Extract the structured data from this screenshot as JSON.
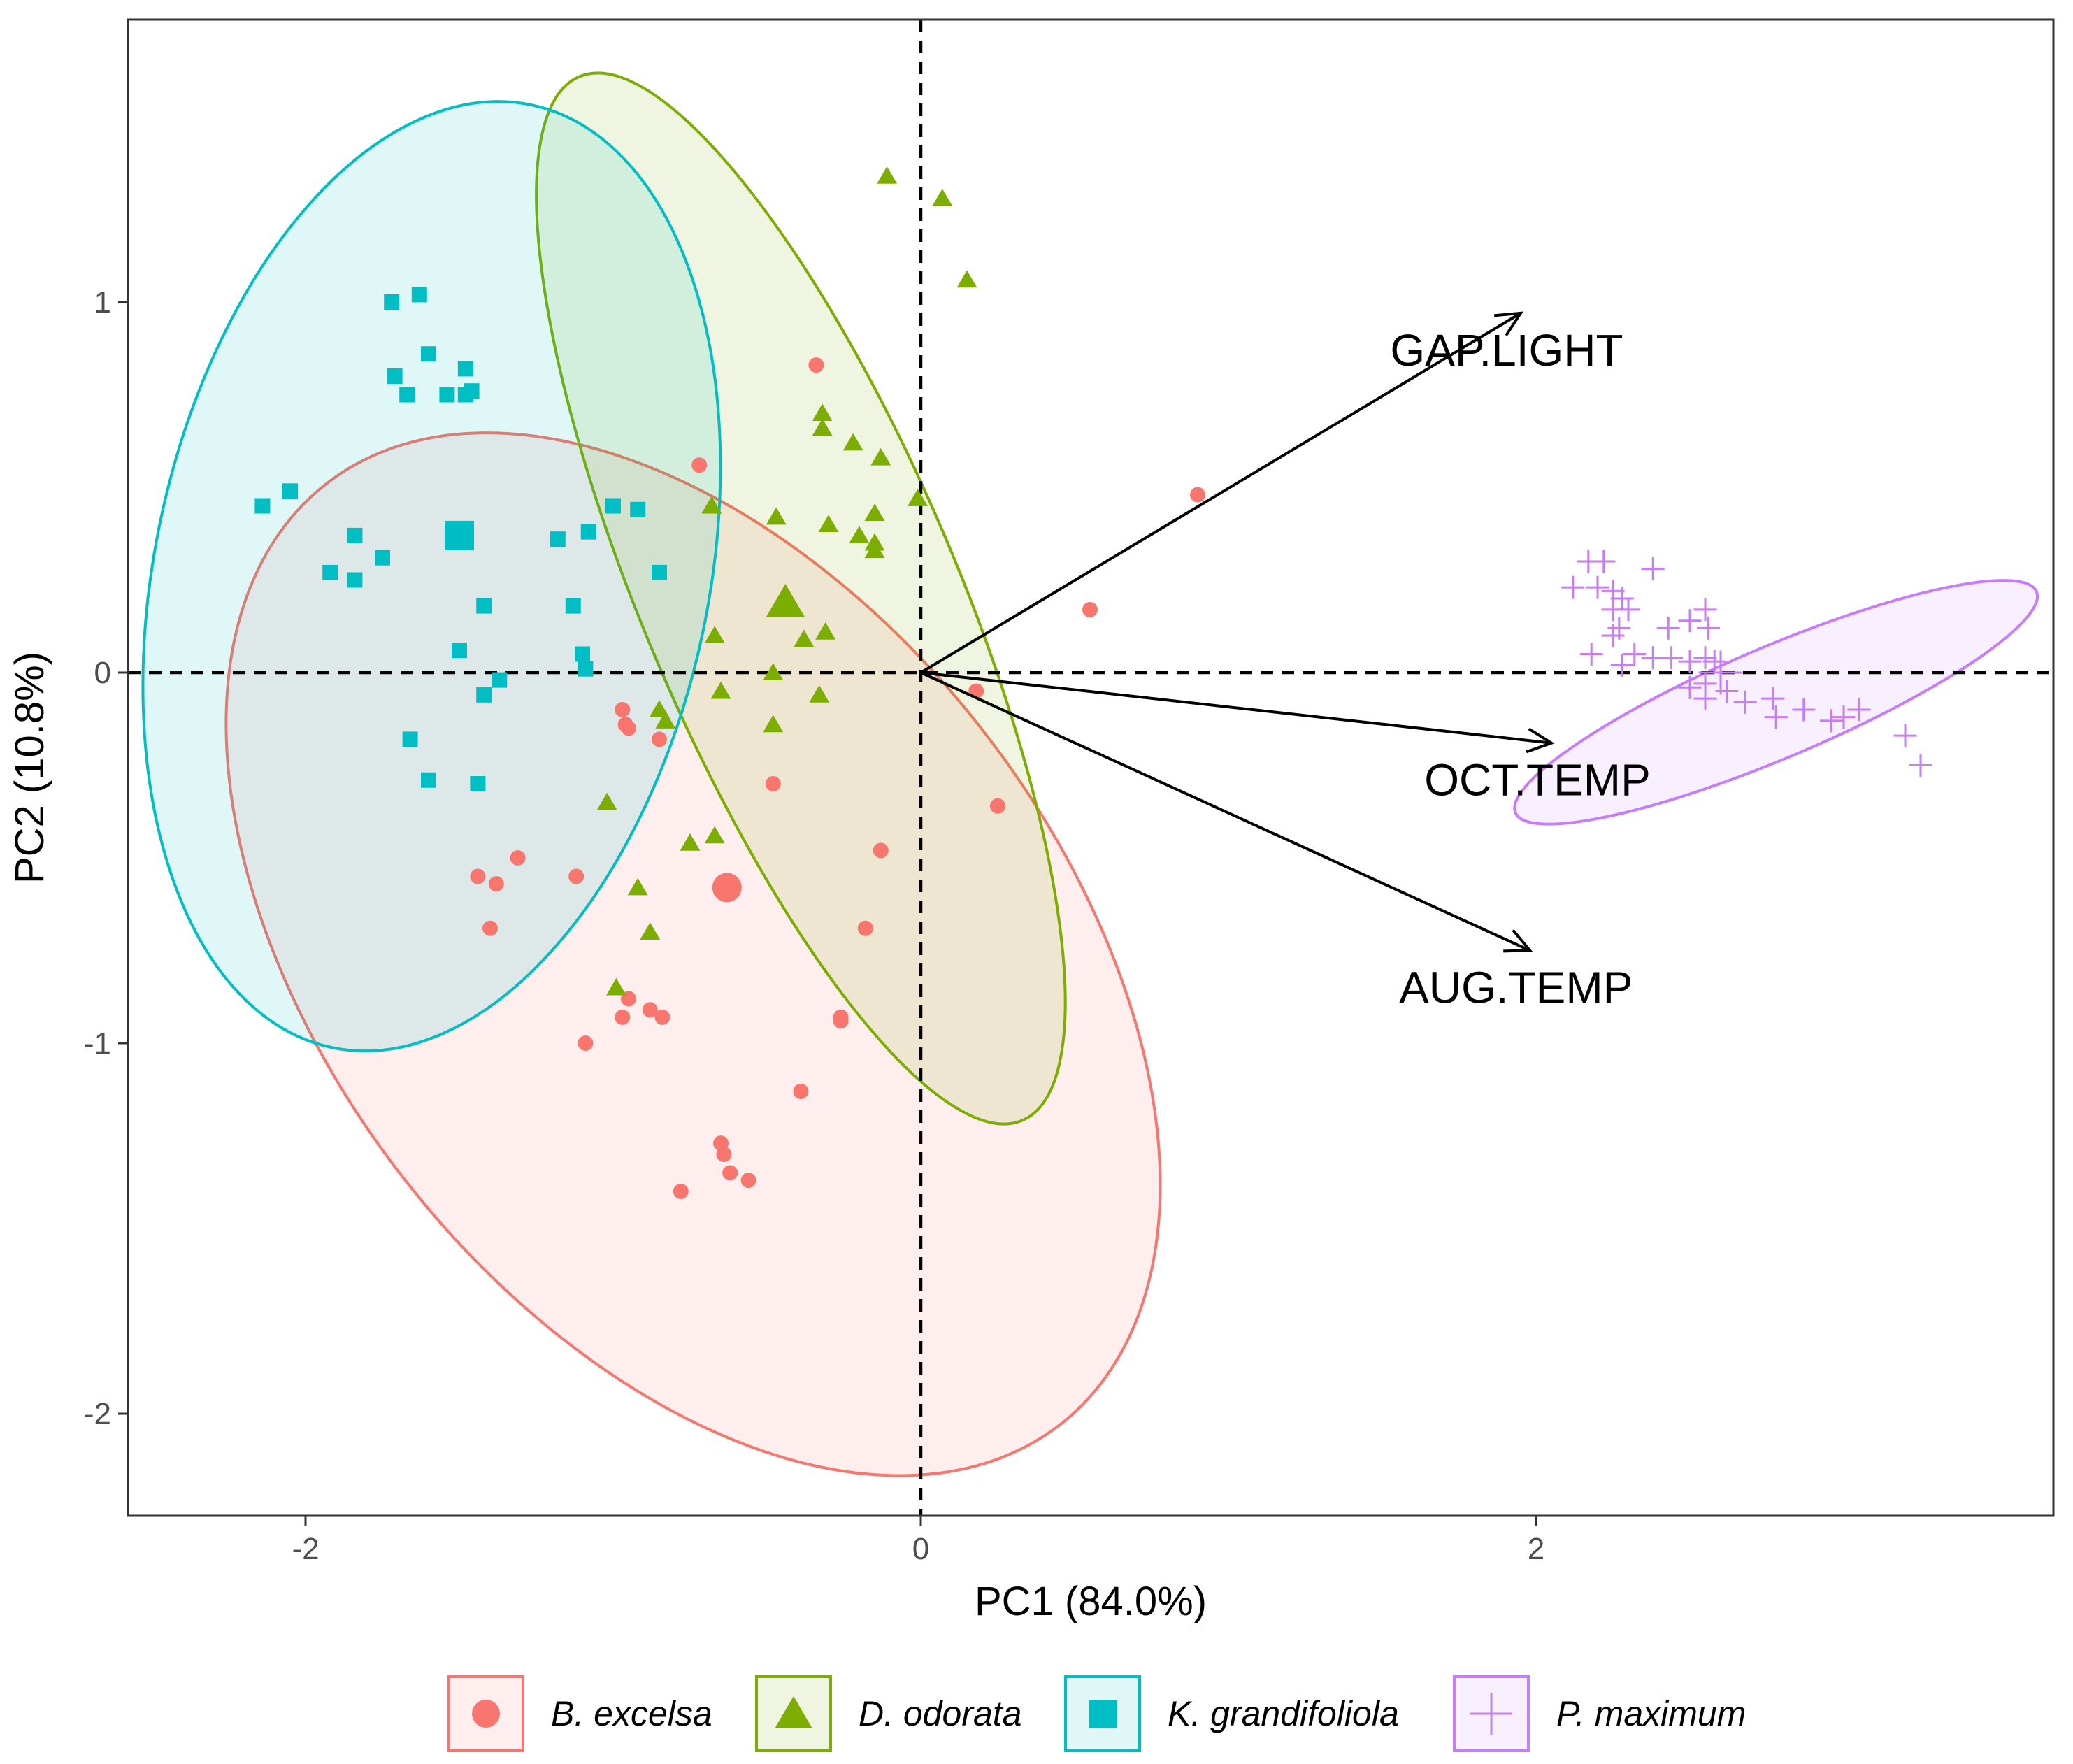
{
  "chart_data": {
    "type": "scatter",
    "subtype": "pca_biplot",
    "title": "",
    "xlabel": "PC1 (84.0%)",
    "ylabel": "PC2 (10.8%)",
    "xlim": [
      -2.5,
      3.6
    ],
    "ylim": [
      -2.3,
      1.75
    ],
    "xticks": [
      -2,
      0,
      2
    ],
    "xtick_labels": [
      "-2",
      "0",
      "2"
    ],
    "yticks": [
      -2,
      -1,
      0,
      1
    ],
    "ytick_labels": [
      "-2",
      "-1",
      "0",
      "1"
    ],
    "grid": false,
    "reference_lines": {
      "x": 0,
      "y": 0,
      "style": "dashed"
    },
    "legend_position": "bottom",
    "arrows": [
      {
        "label": "GAP.LIGHT",
        "x": 1.95,
        "y": 0.97
      },
      {
        "label": "OCT.TEMP",
        "x": 2.05,
        "y": -0.19
      },
      {
        "label": "AUG.TEMP",
        "x": 1.98,
        "y": -0.75
      }
    ],
    "series": [
      {
        "name": "B. excelsa",
        "color": "#F8766D",
        "marker": "circle",
        "ellipse": {
          "cx": -0.74,
          "cy": -0.76,
          "rx": 1.19,
          "ry": 1.61,
          "angle": 38
        },
        "centroid": [
          -0.63,
          -0.58
        ],
        "points": [
          [
            -0.34,
            0.83
          ],
          [
            -0.72,
            0.56
          ],
          [
            0.9,
            0.48
          ],
          [
            0.55,
            0.17
          ],
          [
            0.18,
            -0.05
          ],
          [
            0.25,
            -0.36
          ],
          [
            -0.97,
            -0.1
          ],
          [
            -0.95,
            -0.15
          ],
          [
            -0.96,
            -0.14
          ],
          [
            -0.85,
            -0.18
          ],
          [
            -0.48,
            -0.3
          ],
          [
            -1.44,
            -0.55
          ],
          [
            -1.38,
            -0.57
          ],
          [
            -1.31,
            -0.5
          ],
          [
            -1.12,
            -0.55
          ],
          [
            -1.4,
            -0.69
          ],
          [
            -0.13,
            -0.48
          ],
          [
            -0.18,
            -0.69
          ],
          [
            -0.95,
            -0.88
          ],
          [
            -0.97,
            -0.93
          ],
          [
            -0.88,
            -0.91
          ],
          [
            -0.84,
            -0.93
          ],
          [
            -1.09,
            -1.0
          ],
          [
            -0.26,
            -0.93
          ],
          [
            -0.26,
            -0.94
          ],
          [
            -0.39,
            -1.13
          ],
          [
            -0.65,
            -1.27
          ],
          [
            -0.64,
            -1.3
          ],
          [
            -0.62,
            -1.35
          ],
          [
            -0.56,
            -1.37
          ],
          [
            -0.78,
            -1.4
          ]
        ]
      },
      {
        "name": "D. odorata",
        "color": "#7CAE00",
        "marker": "triangle",
        "ellipse": {
          "cx": -0.39,
          "cy": 0.2,
          "rx": 0.51,
          "ry": 1.53,
          "angle": 23
        },
        "centroid": [
          -0.44,
          0.19
        ],
        "points": [
          [
            -0.11,
            1.34
          ],
          [
            0.07,
            1.28
          ],
          [
            0.15,
            1.06
          ],
          [
            -0.32,
            0.7
          ],
          [
            -0.32,
            0.66
          ],
          [
            -0.22,
            0.62
          ],
          [
            -0.13,
            0.58
          ],
          [
            -0.68,
            0.45
          ],
          [
            -0.47,
            0.42
          ],
          [
            -0.3,
            0.4
          ],
          [
            -0.15,
            0.43
          ],
          [
            -0.2,
            0.37
          ],
          [
            -0.15,
            0.35
          ],
          [
            -0.15,
            0.33
          ],
          [
            -0.01,
            0.47
          ],
          [
            -0.67,
            0.1
          ],
          [
            -0.38,
            0.09
          ],
          [
            -0.31,
            0.11
          ],
          [
            -0.48,
            0.0
          ],
          [
            -0.65,
            -0.05
          ],
          [
            -0.33,
            -0.06
          ],
          [
            -0.48,
            -0.14
          ],
          [
            -0.85,
            -0.1
          ],
          [
            -0.83,
            -0.13
          ],
          [
            -1.02,
            -0.35
          ],
          [
            -0.75,
            -0.46
          ],
          [
            -0.67,
            -0.44
          ],
          [
            -0.92,
            -0.58
          ],
          [
            -0.88,
            -0.7
          ],
          [
            -0.99,
            -0.85
          ]
        ]
      },
      {
        "name": "K. grandifoliola",
        "color": "#00BFC4",
        "marker": "square",
        "ellipse": {
          "cx": -1.59,
          "cy": 0.26,
          "rx": 0.9,
          "ry": 1.3,
          "angle": -12
        },
        "centroid": [
          -1.5,
          0.37
        ],
        "points": [
          [
            -1.72,
            1.0
          ],
          [
            -1.63,
            1.02
          ],
          [
            -1.71,
            0.8
          ],
          [
            -1.67,
            0.75
          ],
          [
            -1.6,
            0.86
          ],
          [
            -1.54,
            0.75
          ],
          [
            -1.48,
            0.75
          ],
          [
            -1.48,
            0.82
          ],
          [
            -1.46,
            0.76
          ],
          [
            -2.14,
            0.45
          ],
          [
            -2.05,
            0.49
          ],
          [
            -1.84,
            0.37
          ],
          [
            -1.92,
            0.27
          ],
          [
            -1.84,
            0.25
          ],
          [
            -1.75,
            0.31
          ],
          [
            -1.18,
            0.36
          ],
          [
            -1.08,
            0.38
          ],
          [
            -1.0,
            0.45
          ],
          [
            -0.92,
            0.44
          ],
          [
            -0.85,
            0.27
          ],
          [
            -1.42,
            0.18
          ],
          [
            -1.13,
            0.18
          ],
          [
            -1.5,
            0.06
          ],
          [
            -1.1,
            0.05
          ],
          [
            -1.09,
            0.01
          ],
          [
            -1.37,
            -0.02
          ],
          [
            -1.42,
            -0.06
          ],
          [
            -1.66,
            -0.18
          ],
          [
            -1.6,
            -0.29
          ],
          [
            -1.44,
            -0.3
          ]
        ]
      },
      {
        "name": "P. maximum",
        "color": "#C77CFF",
        "marker": "plus",
        "ellipse": {
          "cx": 2.78,
          "cy": -0.08,
          "rx": 0.92,
          "ry": 0.15,
          "angle": 23
        },
        "centroid": [
          2.6,
          0.0
        ],
        "points": [
          [
            2.12,
            0.23
          ],
          [
            2.17,
            0.3
          ],
          [
            2.22,
            0.3
          ],
          [
            2.38,
            0.28
          ],
          [
            2.2,
            0.23
          ],
          [
            2.25,
            0.22
          ],
          [
            2.28,
            0.2
          ],
          [
            2.25,
            0.17
          ],
          [
            2.3,
            0.17
          ],
          [
            2.27,
            0.12
          ],
          [
            2.25,
            0.1
          ],
          [
            2.43,
            0.12
          ],
          [
            2.5,
            0.14
          ],
          [
            2.55,
            0.17
          ],
          [
            2.56,
            0.12
          ],
          [
            2.18,
            0.05
          ],
          [
            2.28,
            0.02
          ],
          [
            2.32,
            0.05
          ],
          [
            2.38,
            0.04
          ],
          [
            2.44,
            0.04
          ],
          [
            2.5,
            0.03
          ],
          [
            2.55,
            0.04
          ],
          [
            2.58,
            0.03
          ],
          [
            2.6,
            0.0
          ],
          [
            2.62,
            -0.05
          ],
          [
            2.55,
            -0.07
          ],
          [
            2.5,
            -0.04
          ],
          [
            2.77,
            -0.07
          ],
          [
            2.87,
            -0.1
          ],
          [
            2.96,
            -0.13
          ],
          [
            3.0,
            -0.12
          ],
          [
            3.05,
            -0.1
          ],
          [
            2.78,
            -0.12
          ],
          [
            2.68,
            -0.08
          ],
          [
            3.2,
            -0.17
          ],
          [
            3.25,
            -0.25
          ],
          [
            2.55,
            -0.03
          ]
        ]
      }
    ]
  }
}
